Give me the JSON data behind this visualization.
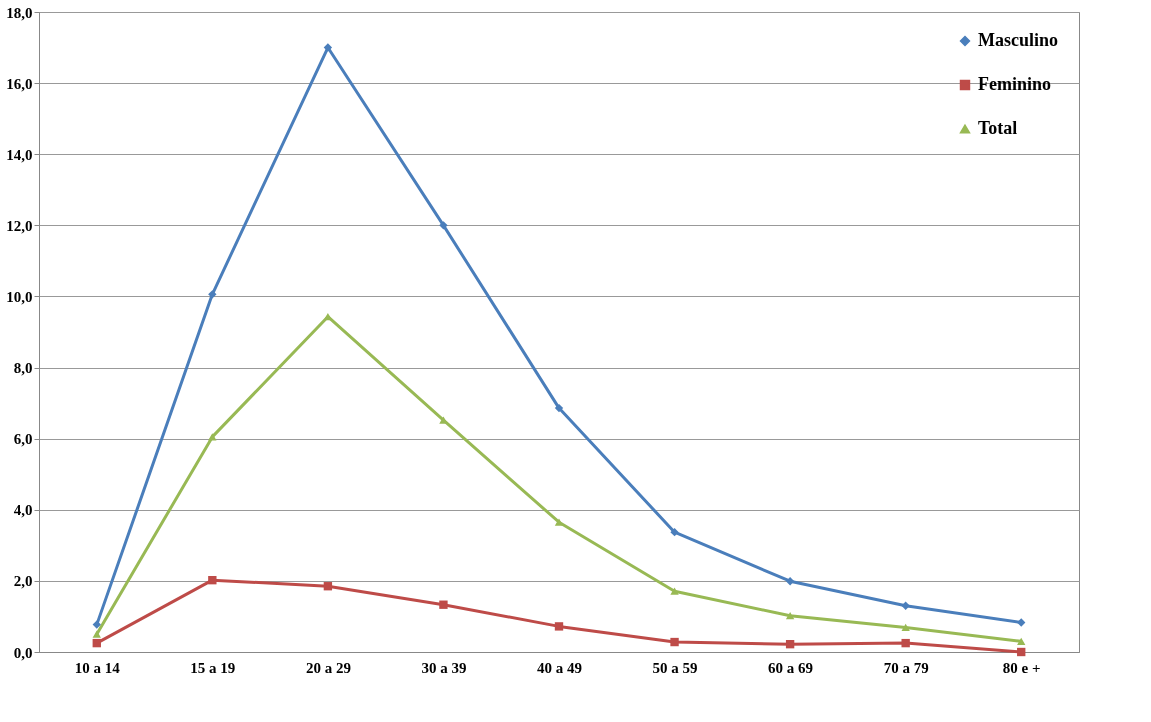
{
  "chart_data": {
    "type": "line",
    "categories": [
      "10 a 14",
      "15 a 19",
      "20 a 29",
      "30 a 39",
      "40 a 49",
      "50 a 59",
      "60 a 69",
      "70 a 79",
      "80 e +"
    ],
    "series": [
      {
        "name": "Masculino",
        "color": "#4a7ebb",
        "marker": "diamond",
        "values": [
          0.77,
          10.06,
          17.0,
          12.0,
          6.86,
          3.37,
          1.99,
          1.3,
          0.83
        ]
      },
      {
        "name": "Feminino",
        "color": "#be4b48",
        "marker": "square",
        "values": [
          0.25,
          2.02,
          1.85,
          1.33,
          0.72,
          0.28,
          0.22,
          0.25,
          0.0
        ]
      },
      {
        "name": "Total",
        "color": "#98b954",
        "marker": "triangle",
        "values": [
          0.5,
          6.05,
          9.43,
          6.52,
          3.65,
          1.71,
          1.02,
          0.69,
          0.3
        ]
      }
    ],
    "ylim": [
      0,
      18
    ],
    "yticks": [
      {
        "value": 0,
        "label": "0,0"
      },
      {
        "value": 2,
        "label": "2,0"
      },
      {
        "value": 4,
        "label": "4,0"
      },
      {
        "value": 6,
        "label": "6,0"
      },
      {
        "value": 8,
        "label": "8,0"
      },
      {
        "value": 10,
        "label": "10,0"
      },
      {
        "value": 12,
        "label": "12,0"
      },
      {
        "value": 14,
        "label": "14,0"
      },
      {
        "value": 16,
        "label": "16,0"
      },
      {
        "value": 18,
        "label": "18,0"
      }
    ],
    "grid": "y",
    "legend": "top right",
    "line_style": "solid"
  }
}
